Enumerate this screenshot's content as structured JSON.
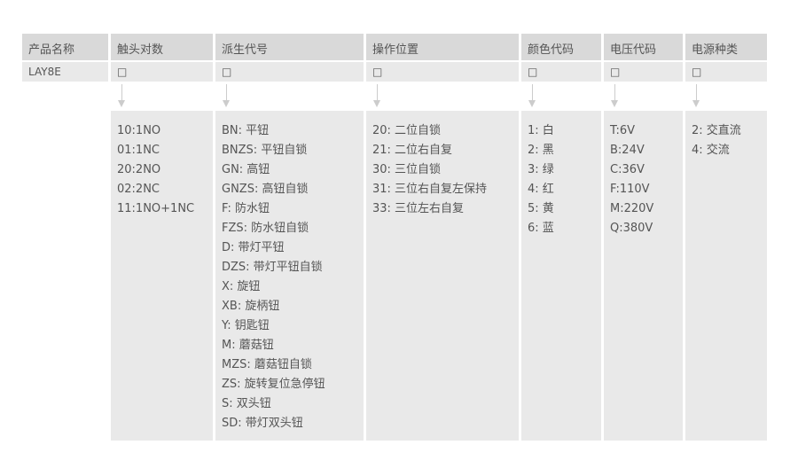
{
  "headers": [
    "产品名称",
    "触头对数",
    "派生代号",
    "操作位置",
    "颜色代码",
    "电压代码",
    "电源种类"
  ],
  "row": [
    "LAY8E",
    "□",
    "□",
    "□",
    "□",
    "□",
    "□"
  ],
  "options": [
    [
      "10:1NO",
      "01:1NC",
      "20:2NO",
      "02:2NC",
      "11:1NO+1NC"
    ],
    [
      "BN: 平钮",
      "BNZS: 平钮自锁",
      "GN: 高钮",
      "GNZS: 高钮自锁",
      "F: 防水钮",
      "FZS: 防水钮自锁",
      "D: 带灯平钮",
      "DZS: 带灯平钮自锁",
      "X: 旋钮",
      "XB: 旋柄钮",
      "Y: 钥匙钮",
      "M: 蘑菇钮",
      "MZS: 蘑菇钮自锁",
      "ZS: 旋转复位急停钮",
      "S: 双头钮",
      "SD: 带灯双头钮"
    ],
    [
      "20: 二位自锁",
      "21: 二位右自复",
      "30: 三位自锁",
      "31: 三位右自复左保持",
      "33: 三位左右自复"
    ],
    [
      "1: 白",
      "2: 黑",
      "3: 绿",
      "4: 红",
      "5: 黄",
      "6: 蓝"
    ],
    [
      "T:6V",
      "B:24V",
      "C:36V",
      "F:110V",
      "M:220V",
      "Q:380V"
    ],
    [
      "2: 交直流",
      "4: 交流"
    ]
  ]
}
